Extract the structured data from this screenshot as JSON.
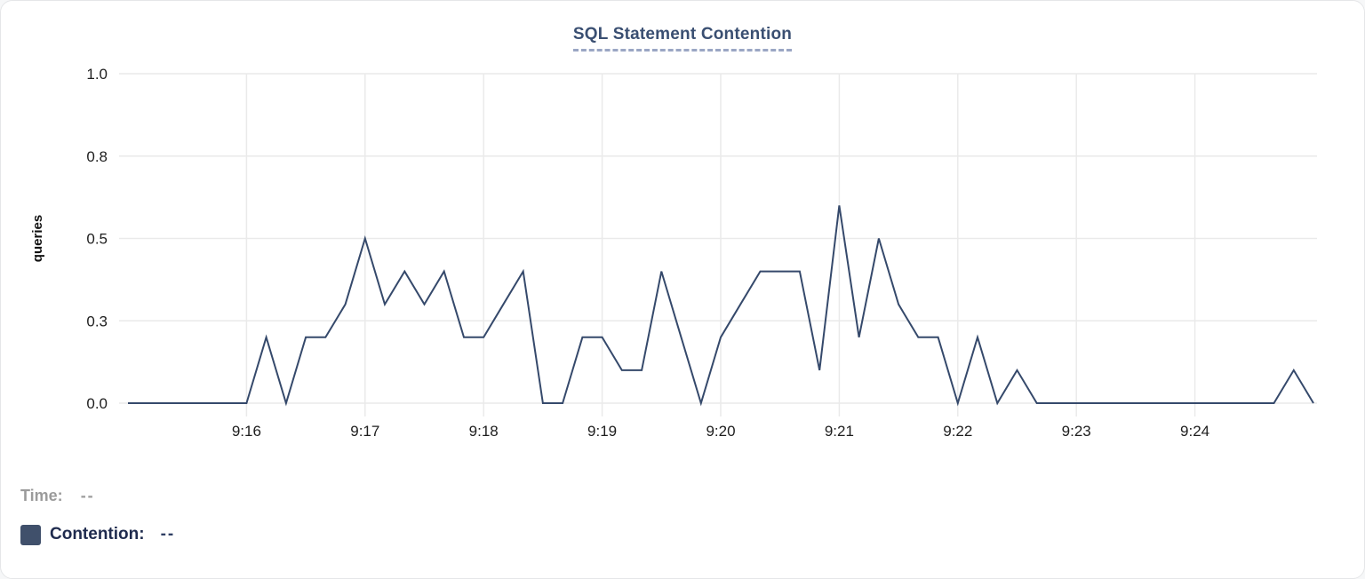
{
  "title": "SQL Statement Contention",
  "colors": {
    "line": "#35496b",
    "swatch": "#40506b",
    "grid": "#eaeaea",
    "axis_text": "#1e1e1e",
    "axis_title_text": "#111111",
    "title_text": "#3a4f72",
    "title_underline": "#9aa6c4",
    "muted_text": "#9b9b9b",
    "legend_text": "#1f2b4e"
  },
  "readout": {
    "time_label": "Time:",
    "time_value": "--",
    "series_label": "Contention:",
    "series_value": "--"
  },
  "chart_data": {
    "type": "line",
    "title": "SQL Statement Contention",
    "xlabel": "",
    "ylabel": "queries",
    "series_name": "Contention",
    "ylim": [
      0,
      1
    ],
    "grid": true,
    "legend_position": "bottom-left",
    "y_ticks": [
      {
        "label": "0.0",
        "value": 0
      },
      {
        "label": "0.3",
        "value": 0.25
      },
      {
        "label": "0.5",
        "value": 0.5
      },
      {
        "label": "0.8",
        "value": 0.75
      },
      {
        "label": "1.0",
        "value": 1.0
      }
    ],
    "x_tick_labels": [
      "9:16",
      "9:17",
      "9:18",
      "9:19",
      "9:20",
      "9:21",
      "9:22",
      "9:23",
      "9:24"
    ],
    "x_tick_interval_seconds": 60,
    "x_domain_seconds": [
      0,
      600
    ],
    "x_start_time": "9:15:00",
    "x_end_time": "9:25:00",
    "point_interval_seconds": 10,
    "values": [
      0,
      0,
      0,
      0,
      0,
      0,
      0,
      0.2,
      0,
      0.2,
      0.2,
      0.3,
      0.5,
      0.3,
      0.4,
      0.3,
      0.4,
      0.2,
      0.2,
      0.3,
      0.4,
      0,
      0,
      0.2,
      0.2,
      0.1,
      0.1,
      0.4,
      0.2,
      0,
      0.2,
      0.3,
      0.4,
      0.4,
      0.4,
      0.1,
      0.6,
      0.2,
      0.5,
      0.3,
      0.2,
      0.2,
      0,
      0.2,
      0,
      0.1,
      0,
      0,
      0,
      0,
      0,
      0,
      0,
      0,
      0,
      0,
      0,
      0,
      0,
      0.1,
      0
    ]
  }
}
